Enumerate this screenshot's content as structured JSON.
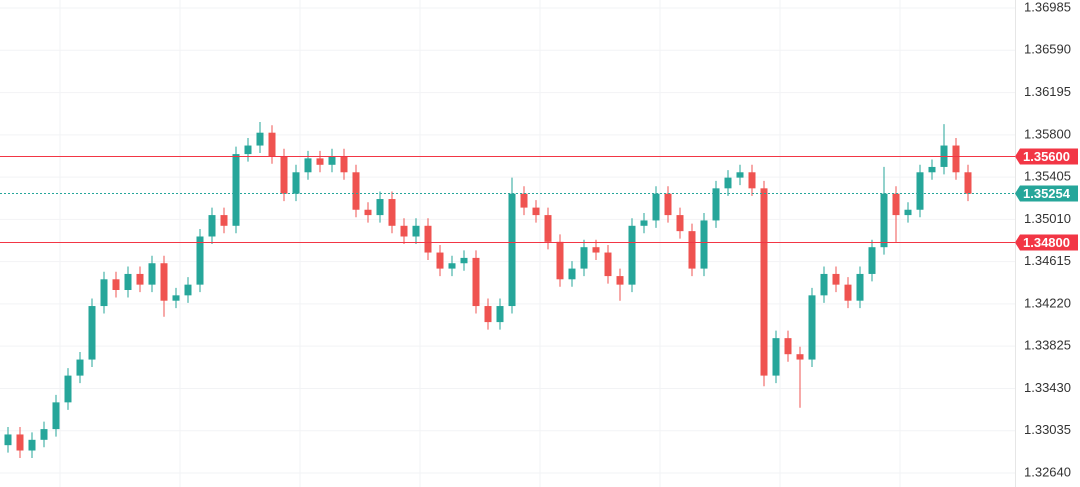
{
  "chart_data": {
    "type": "candlestick",
    "up_color": "#26a69a",
    "down_color": "#ef5350",
    "ylim": [
      1.32509,
      1.3706
    ],
    "yticks": [
      {
        "value": 1.3264,
        "label": "1.32640"
      },
      1.33035,
      {
        "value": 1.3343,
        "label": "1.33430"
      },
      1.33825,
      {
        "value": 1.3422,
        "label": "1.34220"
      },
      1.34615,
      {
        "value": 1.3501,
        "label": "1.35010"
      },
      1.35405,
      {
        "value": 1.358,
        "label": "1.35800"
      },
      1.36195,
      {
        "value": 1.3659,
        "label": "1.36590"
      },
      1.36985
    ],
    "grid": true,
    "open": [
      1.329,
      1.33,
      1.3285,
      1.3295,
      1.3305,
      1.333,
      1.3355,
      1.337,
      1.342,
      1.3445,
      1.3435,
      1.345,
      1.344,
      1.346,
      1.3425,
      1.343,
      1.344,
      1.3485,
      1.3505,
      1.3495,
      1.3562,
      1.357,
      1.3582,
      1.356,
      1.3525,
      1.3545,
      1.3558,
      1.3552,
      1.356,
      1.3545,
      1.351,
      1.3505,
      1.352,
      1.3495,
      1.3485,
      1.3495,
      1.347,
      1.3455,
      1.346,
      1.3465,
      1.342,
      1.3405,
      1.342,
      1.3525,
      1.3512,
      1.3505,
      1.348,
      1.3445,
      1.3455,
      1.3475,
      1.347,
      1.3448,
      1.344,
      1.3495,
      1.35,
      1.3525,
      1.3505,
      1.349,
      1.3455,
      1.35,
      1.353,
      1.354,
      1.3545,
      1.353,
      1.3355,
      1.339,
      1.3375,
      1.337,
      1.343,
      1.345,
      1.344,
      1.3425,
      1.345,
      1.3475,
      1.3525,
      1.3505,
      1.351,
      1.3545,
      1.355,
      1.357,
      1.3545
    ],
    "high": [
      1.3307,
      1.3307,
      1.3302,
      1.3312,
      1.3337,
      1.3362,
      1.3377,
      1.3427,
      1.3452,
      1.3452,
      1.3457,
      1.3457,
      1.3467,
      1.3467,
      1.3437,
      1.3447,
      1.3492,
      1.3512,
      1.3512,
      1.3569,
      1.3577,
      1.3592,
      1.3589,
      1.3567,
      1.3552,
      1.3565,
      1.3565,
      1.3567,
      1.3567,
      1.3552,
      1.3517,
      1.3527,
      1.3527,
      1.3502,
      1.3502,
      1.3502,
      1.3477,
      1.3467,
      1.3472,
      1.3472,
      1.3427,
      1.3427,
      1.354,
      1.3532,
      1.3519,
      1.3512,
      1.3487,
      1.3462,
      1.3482,
      1.3482,
      1.3477,
      1.3455,
      1.3502,
      1.3507,
      1.3532,
      1.3532,
      1.3512,
      1.3497,
      1.3507,
      1.3537,
      1.3547,
      1.3552,
      1.3552,
      1.3537,
      1.3397,
      1.3397,
      1.3382,
      1.3437,
      1.3457,
      1.3457,
      1.3447,
      1.3457,
      1.3482,
      1.355,
      1.3532,
      1.3517,
      1.3552,
      1.3557,
      1.359,
      1.3577,
      1.3552
    ],
    "low": [
      1.3283,
      1.3278,
      1.3278,
      1.3288,
      1.3298,
      1.3323,
      1.3348,
      1.3363,
      1.3413,
      1.3428,
      1.3428,
      1.3433,
      1.3433,
      1.341,
      1.3418,
      1.3423,
      1.3433,
      1.3478,
      1.3488,
      1.3488,
      1.3555,
      1.3563,
      1.3553,
      1.3518,
      1.3518,
      1.3538,
      1.3545,
      1.3545,
      1.3538,
      1.3503,
      1.3498,
      1.3498,
      1.3488,
      1.3478,
      1.3478,
      1.3463,
      1.3448,
      1.3448,
      1.3453,
      1.3413,
      1.3398,
      1.3398,
      1.3413,
      1.3505,
      1.3498,
      1.3473,
      1.3438,
      1.3438,
      1.3448,
      1.3463,
      1.3441,
      1.3425,
      1.3433,
      1.3488,
      1.3493,
      1.3498,
      1.3483,
      1.3448,
      1.3448,
      1.3493,
      1.3523,
      1.3533,
      1.3523,
      1.3345,
      1.3348,
      1.3368,
      1.3325,
      1.3363,
      1.3423,
      1.3433,
      1.3418,
      1.3418,
      1.3443,
      1.3468,
      1.348,
      1.3498,
      1.3503,
      1.3538,
      1.3543,
      1.3538,
      1.3518
    ],
    "close": [
      1.33,
      1.3285,
      1.3295,
      1.3305,
      1.333,
      1.3355,
      1.337,
      1.342,
      1.3445,
      1.3435,
      1.345,
      1.344,
      1.346,
      1.3425,
      1.343,
      1.344,
      1.3485,
      1.3505,
      1.3495,
      1.3562,
      1.357,
      1.3582,
      1.356,
      1.3525,
      1.3545,
      1.3558,
      1.3552,
      1.356,
      1.3545,
      1.351,
      1.3505,
      1.352,
      1.3495,
      1.3485,
      1.3495,
      1.347,
      1.3455,
      1.346,
      1.3465,
      1.342,
      1.3405,
      1.342,
      1.3525,
      1.3512,
      1.3505,
      1.348,
      1.3445,
      1.3455,
      1.3475,
      1.347,
      1.3448,
      1.344,
      1.3495,
      1.35,
      1.3525,
      1.3505,
      1.349,
      1.3455,
      1.35,
      1.353,
      1.354,
      1.3545,
      1.353,
      1.3355,
      1.339,
      1.3375,
      1.337,
      1.343,
      1.345,
      1.344,
      1.3425,
      1.345,
      1.3475,
      1.3525,
      1.3505,
      1.351,
      1.3545,
      1.355,
      1.357,
      1.3545,
      1.3525
    ],
    "price_lines": [
      {
        "value": 1.356,
        "label": "1.35600",
        "color": "#f23645",
        "style": "solid"
      },
      {
        "value": 1.35254,
        "label": "1.35254",
        "color": "#26a69a",
        "style": "dotted"
      },
      {
        "value": 1.348,
        "label": "1.34800",
        "color": "#f23645",
        "style": "solid"
      }
    ]
  }
}
